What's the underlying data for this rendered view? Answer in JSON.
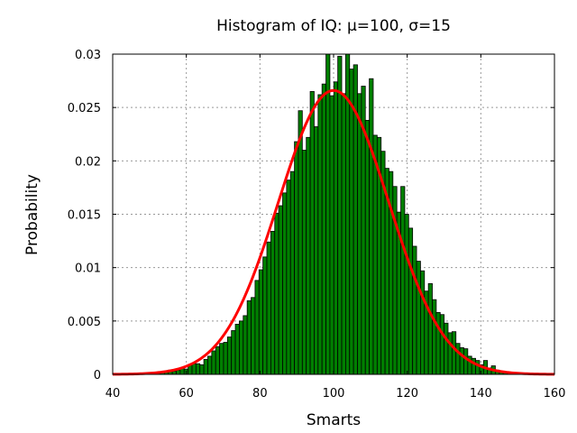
{
  "chart_data": {
    "type": "bar",
    "title": "Histogram of IQ: μ=100, σ=15",
    "xlabel": "Smarts",
    "ylabel": "Probability",
    "xlim": [
      40,
      160
    ],
    "ylim": [
      0,
      0.03
    ],
    "xticks": [
      "40",
      "60",
      "80",
      "100",
      "120",
      "140",
      "160"
    ],
    "yticks": [
      "0",
      "0.005",
      "0.01",
      "0.015",
      "0.02",
      "0.025",
      "0.03"
    ],
    "grid": true,
    "bar_color": "#007f00",
    "curve_color": "#ff0000",
    "bin_start": 45.5,
    "bin_width": 1.07,
    "values": [
      0.0001,
      0,
      0,
      0.0001,
      0.0001,
      0.0002,
      0.0002,
      0.0002,
      0.0003,
      0.0004,
      0.0003,
      0.0004,
      0.0006,
      0.0005,
      0.0009,
      0.001,
      0.001,
      0.0009,
      0.0014,
      0.0017,
      0.0022,
      0.0026,
      0.0029,
      0.003,
      0.0035,
      0.0041,
      0.0047,
      0.005,
      0.0055,
      0.0069,
      0.0072,
      0.0088,
      0.0098,
      0.011,
      0.0124,
      0.0134,
      0.0151,
      0.0158,
      0.017,
      0.0182,
      0.019,
      0.0218,
      0.0247,
      0.021,
      0.0222,
      0.0265,
      0.0232,
      0.0262,
      0.0272,
      0.03,
      0.0261,
      0.0274,
      0.0298,
      0.0263,
      0.03,
      0.0286,
      0.029,
      0.0263,
      0.027,
      0.0238,
      0.0277,
      0.0224,
      0.0222,
      0.0209,
      0.0193,
      0.019,
      0.0176,
      0.0152,
      0.0176,
      0.015,
      0.0137,
      0.012,
      0.0106,
      0.0097,
      0.0078,
      0.0085,
      0.007,
      0.0058,
      0.0056,
      0.0048,
      0.0039,
      0.004,
      0.0029,
      0.0025,
      0.0024,
      0.0017,
      0.0015,
      0.0013,
      0.0009,
      0.0013,
      0.0006,
      0.0008,
      0.0004,
      0.0003,
      0.0002,
      0.0002,
      0.0001,
      0.0001,
      0.0001,
      0,
      0.0001
    ],
    "curve": {
      "type": "normal-pdf",
      "mu": 100,
      "sigma": 15
    }
  }
}
